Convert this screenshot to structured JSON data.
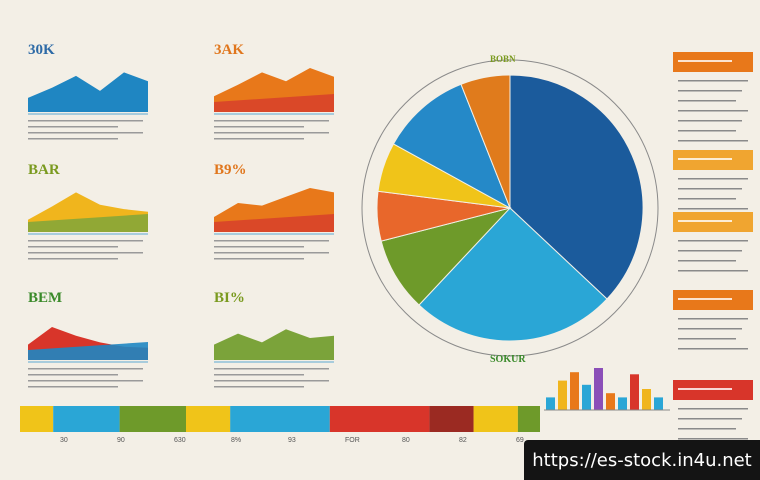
{
  "watermark_url": "https://es-stock.in4u.net",
  "panels": [
    {
      "title": "30K",
      "title_color": "#2d6aa6",
      "fill": "#1f86c2",
      "values": [
        0.32,
        0.55,
        0.82,
        0.48,
        0.9,
        0.7
      ]
    },
    {
      "title": "3AK",
      "title_color": "#e0761c",
      "fill": "#e8781a",
      "shade": "#d8432a",
      "values": [
        0.36,
        0.62,
        0.9,
        0.7,
        1.0,
        0.8
      ]
    },
    {
      "title": "BAR",
      "title_color": "#7a9a1f",
      "fill": "#f0b51d",
      "shade": "#86a638",
      "values": [
        0.28,
        0.58,
        0.9,
        0.62,
        0.52,
        0.46
      ]
    },
    {
      "title": "B9%",
      "title_color": "#e0761c",
      "fill": "#e8781a",
      "shade": "#d8432a",
      "values": [
        0.34,
        0.66,
        0.6,
        0.8,
        1.0,
        0.9
      ]
    },
    {
      "title": "BEM",
      "title_color": "#3a8a2a",
      "fill": "#d8352a",
      "shade": "#1f86c2",
      "values": [
        0.35,
        0.75,
        0.55,
        0.4,
        0.3,
        0.28
      ]
    },
    {
      "title": "BI%",
      "title_color": "#7a9a1f",
      "fill": "#7ba33a",
      "values": [
        0.35,
        0.6,
        0.4,
        0.7,
        0.5,
        0.55
      ]
    }
  ],
  "pie": {
    "top_label": "BOBN",
    "bottom_label": "SOKUR",
    "slices": [
      {
        "value": 37,
        "color": "#1b5b9c"
      },
      {
        "value": 25,
        "color": "#2aa6d6"
      },
      {
        "value": 9,
        "color": "#6e9a2a"
      },
      {
        "value": 6,
        "color": "#e8672b"
      },
      {
        "value": 6,
        "color": "#f0c419"
      },
      {
        "value": 11,
        "color": "#2589c8"
      },
      {
        "value": 6,
        "color": "#e07b1c"
      }
    ]
  },
  "bottom_bar": {
    "segments": [
      {
        "value": 3,
        "color": "#f0c419"
      },
      {
        "value": 6,
        "color": "#2aa6d6"
      },
      {
        "value": 6,
        "color": "#6e9a2a"
      },
      {
        "value": 4,
        "color": "#f0c419"
      },
      {
        "value": 9,
        "color": "#2aa6d6"
      },
      {
        "value": 9,
        "color": "#d8352a"
      },
      {
        "value": 4,
        "color": "#9b2a22"
      },
      {
        "value": 4,
        "color": "#f0c419"
      },
      {
        "value": 2,
        "color": "#6e9a2a"
      }
    ],
    "labels": [
      "30",
      "90",
      "630",
      "8%",
      "93",
      "FOR",
      "80",
      "82",
      "69"
    ]
  },
  "mini_bars": {
    "values": [
      0.3,
      0.7,
      0.9,
      0.6,
      1.0,
      0.4,
      0.3,
      0.85,
      0.5,
      0.3
    ],
    "colors": [
      "#2aa6d6",
      "#f0b51d",
      "#e8781a",
      "#2aa6d6",
      "#8b4fb8",
      "#e8781a",
      "#2aa6d6",
      "#d8352a",
      "#f0b51d",
      "#2aa6d6"
    ]
  },
  "right_headers": [
    {
      "color": "#e8781a"
    },
    {
      "color": "#f0a530"
    },
    {
      "color": "#f0a530"
    },
    {
      "color": "#e8781a"
    },
    {
      "color": "#d8352a"
    }
  ]
}
